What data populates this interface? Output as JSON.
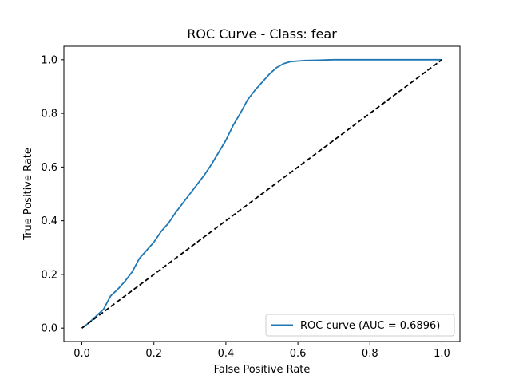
{
  "chart_data": {
    "type": "line",
    "title": "ROC Curve - Class: fear",
    "xlabel": "False Positive Rate",
    "ylabel": "True Positive Rate",
    "xlim": [
      -0.05,
      1.05
    ],
    "ylim": [
      -0.05,
      1.05
    ],
    "xticks": [
      0.0,
      0.2,
      0.4,
      0.6,
      0.8,
      1.0
    ],
    "yticks": [
      0.0,
      0.2,
      0.4,
      0.6,
      0.8,
      1.0
    ],
    "xtick_labels": [
      "0.0",
      "0.2",
      "0.4",
      "0.6",
      "0.8",
      "1.0"
    ],
    "ytick_labels": [
      "0.0",
      "0.2",
      "0.4",
      "0.6",
      "0.8",
      "1.0"
    ],
    "grid": false,
    "legend_position": "lower right",
    "series": [
      {
        "name": "ROC curve (AUC = 0.6896)",
        "color": "#1f77b4",
        "style": "solid",
        "x": [
          0.0,
          0.02,
          0.04,
          0.06,
          0.08,
          0.1,
          0.12,
          0.14,
          0.16,
          0.18,
          0.2,
          0.22,
          0.24,
          0.26,
          0.28,
          0.3,
          0.32,
          0.34,
          0.36,
          0.38,
          0.4,
          0.42,
          0.44,
          0.46,
          0.48,
          0.5,
          0.52,
          0.54,
          0.56,
          0.58,
          0.6,
          0.62,
          0.65,
          0.7,
          0.8,
          0.9,
          1.0
        ],
        "y": [
          0.0,
          0.02,
          0.045,
          0.07,
          0.12,
          0.145,
          0.175,
          0.21,
          0.26,
          0.29,
          0.32,
          0.36,
          0.39,
          0.43,
          0.465,
          0.5,
          0.535,
          0.57,
          0.61,
          0.655,
          0.7,
          0.755,
          0.8,
          0.85,
          0.885,
          0.915,
          0.945,
          0.97,
          0.985,
          0.993,
          0.995,
          0.997,
          0.998,
          1.0,
          1.0,
          1.0,
          1.0
        ]
      },
      {
        "name": "",
        "color": "#000000",
        "style": "dashed",
        "x": [
          0.0,
          1.0
        ],
        "y": [
          0.0,
          1.0
        ]
      }
    ]
  }
}
